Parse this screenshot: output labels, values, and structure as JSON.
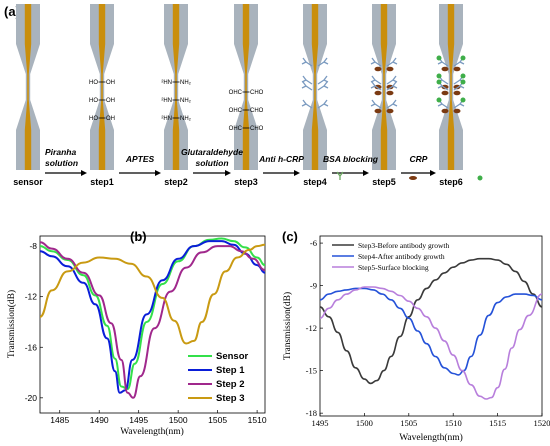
{
  "panel_a": {
    "label": "(a)",
    "steps": [
      "sensor",
      "step1",
      "step2",
      "step3",
      "step4",
      "step5",
      "step6"
    ],
    "reagents": [
      {
        "lines": [
          "Piranha",
          "solution"
        ]
      },
      {
        "lines": [
          "APTES"
        ]
      },
      {
        "lines": [
          "Glutaraldehyde",
          "solution"
        ]
      },
      {
        "lines": [
          "Anti h-CRP"
        ]
      },
      {
        "lines": [
          "BSA blocking"
        ]
      },
      {
        "lines": [
          "CRP"
        ]
      }
    ],
    "chem": {
      "step1": [
        "HO",
        "OH"
      ],
      "step2": [
        "²HN",
        "NH₂"
      ],
      "step3": [
        "OHC",
        "CHO"
      ]
    },
    "colors": {
      "fiber": "#a9b3bd",
      "core": "#c98e0c",
      "arrow": "#000000"
    }
  },
  "chart_data": [
    {
      "panel_label": "(b)",
      "type": "line",
      "xlabel": "Wavelength(nm)",
      "ylabel": "Transmission(dB)",
      "xlim": [
        1482.5,
        1511
      ],
      "ylim": [
        -21.2,
        -7.2
      ],
      "xticks": [
        1485,
        1490,
        1495,
        1500,
        1505,
        1510
      ],
      "yticks": [
        -8,
        -12,
        -16,
        -20
      ],
      "legend_position": "lower-right",
      "series": [
        {
          "name": "Sensor",
          "color": "#33e04a",
          "x": [
            1482.5,
            1484,
            1486,
            1488,
            1489.5,
            1491,
            1492,
            1492.8,
            1493.6,
            1494.5,
            1496,
            1498,
            1500,
            1502,
            1504,
            1505.5,
            1507,
            1508.5,
            1510,
            1511
          ],
          "y": [
            -8.0,
            -8.4,
            -9.1,
            -10.3,
            -11.9,
            -14.3,
            -16.9,
            -19.1,
            -19.3,
            -17.3,
            -14.0,
            -11.0,
            -9.2,
            -8.0,
            -7.5,
            -7.4,
            -7.6,
            -8.1,
            -8.9,
            -9.5
          ]
        },
        {
          "name": "Step 1",
          "color": "#0a1ed8",
          "x": [
            1482.5,
            1484,
            1486,
            1488,
            1489.5,
            1491,
            1492,
            1492.6,
            1493.3,
            1494.2,
            1496,
            1498,
            1500,
            1502,
            1504,
            1505.5,
            1507,
            1508.5,
            1510,
            1511
          ],
          "y": [
            -8.4,
            -8.8,
            -9.6,
            -10.9,
            -12.6,
            -15.3,
            -17.9,
            -19.6,
            -19.4,
            -17.0,
            -13.4,
            -10.7,
            -9.0,
            -8.0,
            -7.6,
            -7.6,
            -7.9,
            -8.6,
            -9.5,
            -10.1
          ]
        },
        {
          "name": "Step 2",
          "color": "#a0288c",
          "x": [
            1482.5,
            1484,
            1486,
            1488,
            1490,
            1491.5,
            1492.8,
            1493.6,
            1494.3,
            1495.2,
            1497,
            1499,
            1501,
            1503,
            1505,
            1506.5,
            1508,
            1509.5,
            1511
          ],
          "y": [
            -7.7,
            -8.2,
            -9.0,
            -10.1,
            -11.9,
            -14.1,
            -17.0,
            -19.6,
            -20.0,
            -18.3,
            -14.5,
            -11.6,
            -9.7,
            -8.5,
            -8.0,
            -8.0,
            -8.4,
            -9.0,
            -9.9
          ]
        },
        {
          "name": "Step 3",
          "color": "#c99a12",
          "x": [
            1482.5,
            1484,
            1486,
            1488,
            1490,
            1492,
            1494,
            1496,
            1498,
            1499.5,
            1501,
            1502,
            1503,
            1504.5,
            1506,
            1507.5,
            1509,
            1510,
            1511
          ],
          "y": [
            -13.6,
            -11.5,
            -10.0,
            -9.3,
            -8.9,
            -9.0,
            -9.4,
            -10.4,
            -12.1,
            -13.9,
            -15.7,
            -15.5,
            -14.0,
            -11.8,
            -10.0,
            -8.9,
            -8.3,
            -8.0,
            -7.9
          ]
        }
      ]
    },
    {
      "panel_label": "(c)",
      "type": "line",
      "xlabel": "Wavelength(nm)",
      "ylabel": "Transmission(dB)",
      "xlim": [
        1495,
        1520
      ],
      "ylim": [
        -18.2,
        -5.5
      ],
      "xticks": [
        1495,
        1500,
        1505,
        1510,
        1515,
        1520
      ],
      "yticks": [
        -6,
        -9,
        -12,
        -15,
        -18
      ],
      "legend_position": "top-left",
      "series": [
        {
          "name": "Step3-Before antibody growth",
          "color": "#3a3a3a",
          "x": [
            1495,
            1496,
            1497,
            1498,
            1499,
            1500,
            1500.7,
            1501.4,
            1502.2,
            1503,
            1504,
            1505,
            1506,
            1507,
            1508,
            1509,
            1510,
            1511,
            1512,
            1513,
            1514,
            1515,
            1516,
            1517,
            1518,
            1519,
            1520
          ],
          "y": [
            -10.5,
            -11.2,
            -12.3,
            -13.6,
            -14.8,
            -15.6,
            -15.9,
            -15.7,
            -15.0,
            -14.0,
            -12.6,
            -11.2,
            -10.0,
            -9.2,
            -8.6,
            -8.1,
            -7.7,
            -7.4,
            -7.2,
            -7.1,
            -7.1,
            -7.2,
            -7.5,
            -8.0,
            -8.7,
            -9.6,
            -10.5
          ]
        },
        {
          "name": "Step4-After antibody growth",
          "color": "#2552d8",
          "x": [
            1495,
            1496,
            1497,
            1498,
            1499,
            1500,
            1501,
            1502,
            1503,
            1504,
            1505,
            1506,
            1507,
            1508,
            1509,
            1510,
            1510.6,
            1511.2,
            1512,
            1513,
            1514,
            1515,
            1516,
            1517,
            1518,
            1519,
            1520
          ],
          "y": [
            -10.0,
            -9.6,
            -9.4,
            -9.3,
            -9.2,
            -9.2,
            -9.3,
            -9.6,
            -10.0,
            -10.6,
            -11.3,
            -12.2,
            -13.1,
            -14.0,
            -14.8,
            -15.2,
            -15.3,
            -15.0,
            -14.0,
            -12.5,
            -11.1,
            -10.2,
            -9.8,
            -9.6,
            -9.6,
            -9.7,
            -10.0
          ]
        },
        {
          "name": "Step5-Surface blocking",
          "color": "#b87fdc",
          "x": [
            1495,
            1496,
            1497,
            1498,
            1499,
            1500,
            1501,
            1502,
            1503,
            1504,
            1505,
            1506,
            1507,
            1508,
            1509,
            1510,
            1511,
            1512,
            1513,
            1513.7,
            1514.3,
            1515,
            1515.8,
            1516.6,
            1517.5,
            1518.5,
            1520
          ],
          "y": [
            -11.3,
            -10.6,
            -10.0,
            -9.6,
            -9.3,
            -9.1,
            -9.1,
            -9.2,
            -9.4,
            -9.7,
            -10.1,
            -10.6,
            -11.2,
            -12.0,
            -12.9,
            -13.9,
            -15.0,
            -16.0,
            -16.8,
            -17.0,
            -16.9,
            -16.2,
            -14.9,
            -13.4,
            -12.1,
            -11.1,
            -9.6
          ]
        }
      ]
    }
  ]
}
